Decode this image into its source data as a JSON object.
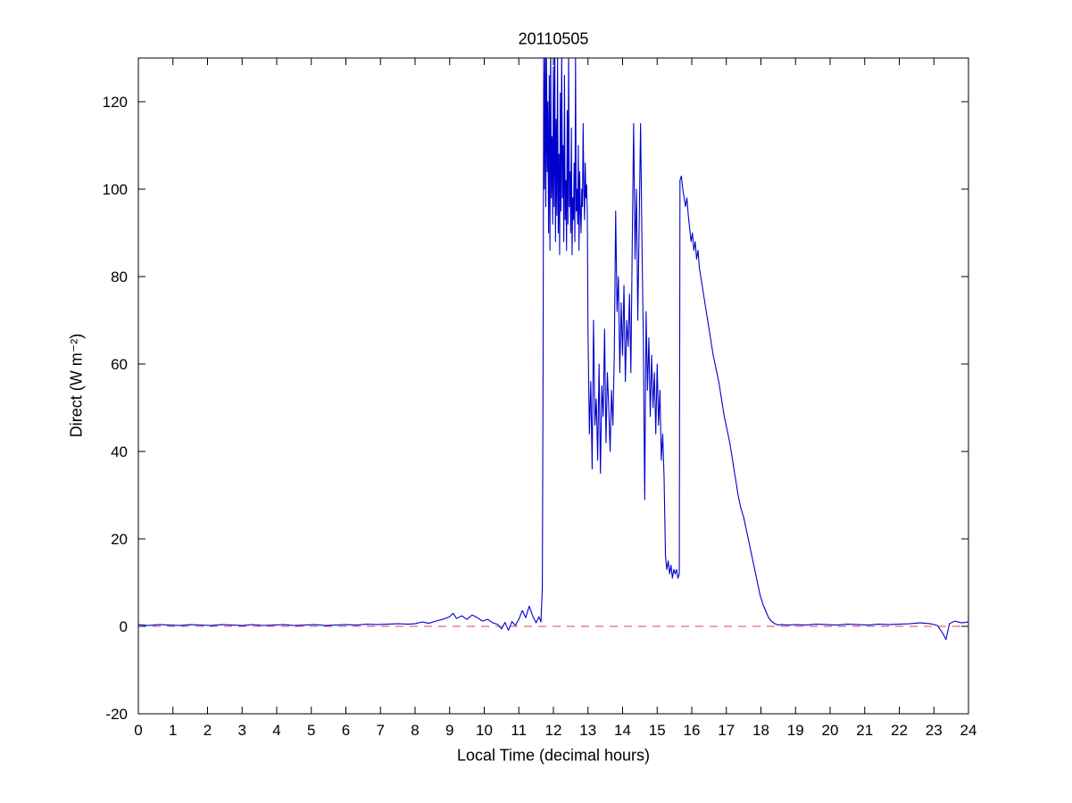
{
  "chart_data": {
    "type": "line",
    "title": "20110505",
    "xlabel": "Local Time (decimal hours)",
    "ylabel": "Direct (W m⁻²)",
    "xlim": [
      0,
      24
    ],
    "ylim": [
      -20,
      130
    ],
    "xticks": [
      0,
      1,
      2,
      3,
      4,
      5,
      6,
      7,
      8,
      9,
      10,
      11,
      12,
      13,
      14,
      15,
      16,
      17,
      18,
      19,
      20,
      21,
      22,
      23,
      24
    ],
    "yticks": [
      -20,
      0,
      20,
      40,
      60,
      80,
      100,
      120
    ],
    "grid": false,
    "legend": null,
    "series": [
      {
        "name": "direct-irradiance",
        "color": "#0000cc",
        "style": "solid",
        "points": [
          [
            0,
            0.4
          ],
          [
            0.3,
            0.2
          ],
          [
            0.6,
            0.4
          ],
          [
            0.9,
            0.3
          ],
          [
            1.2,
            0.2
          ],
          [
            1.5,
            0.4
          ],
          [
            1.8,
            0.3
          ],
          [
            2.1,
            0.2
          ],
          [
            2.4,
            0.4
          ],
          [
            2.7,
            0.3
          ],
          [
            3.0,
            0.2
          ],
          [
            3.3,
            0.4
          ],
          [
            3.6,
            0.2
          ],
          [
            3.9,
            0.3
          ],
          [
            4.2,
            0.4
          ],
          [
            4.5,
            0.2
          ],
          [
            4.8,
            0.3
          ],
          [
            5.1,
            0.4
          ],
          [
            5.4,
            0.2
          ],
          [
            5.7,
            0.3
          ],
          [
            6.0,
            0.4
          ],
          [
            6.3,
            0.3
          ],
          [
            6.6,
            0.5
          ],
          [
            6.9,
            0.4
          ],
          [
            7.2,
            0.5
          ],
          [
            7.5,
            0.6
          ],
          [
            7.8,
            0.5
          ],
          [
            8.0,
            0.6
          ],
          [
            8.2,
            1.0
          ],
          [
            8.4,
            0.7
          ],
          [
            8.6,
            1.2
          ],
          [
            8.8,
            1.6
          ],
          [
            9.0,
            2.2
          ],
          [
            9.1,
            3.0
          ],
          [
            9.2,
            1.8
          ],
          [
            9.35,
            2.4
          ],
          [
            9.5,
            1.6
          ],
          [
            9.65,
            2.6
          ],
          [
            9.8,
            2.0
          ],
          [
            9.95,
            1.2
          ],
          [
            10.1,
            1.6
          ],
          [
            10.25,
            0.8
          ],
          [
            10.4,
            0.4
          ],
          [
            10.5,
            -0.6
          ],
          [
            10.6,
            0.9
          ],
          [
            10.7,
            -0.9
          ],
          [
            10.8,
            1.1
          ],
          [
            10.9,
            0.2
          ],
          [
            11.0,
            1.6
          ],
          [
            11.1,
            3.6
          ],
          [
            11.2,
            2.0
          ],
          [
            11.3,
            4.6
          ],
          [
            11.4,
            2.4
          ],
          [
            11.5,
            0.8
          ],
          [
            11.58,
            2.2
          ],
          [
            11.64,
            1.0
          ],
          [
            11.68,
            9
          ],
          [
            11.7,
            55
          ],
          [
            11.72,
            130
          ],
          [
            11.74,
            100
          ],
          [
            11.76,
            135
          ],
          [
            11.78,
            96
          ],
          [
            11.8,
            132
          ],
          [
            11.82,
            104
          ],
          [
            11.84,
            120
          ],
          [
            11.86,
            90
          ],
          [
            11.88,
            126
          ],
          [
            11.9,
            86
          ],
          [
            11.92,
            135
          ],
          [
            11.94,
            98
          ],
          [
            11.96,
            112
          ],
          [
            11.98,
            92
          ],
          [
            12.0,
            128
          ],
          [
            12.02,
            96
          ],
          [
            12.04,
            134
          ],
          [
            12.06,
            88
          ],
          [
            12.08,
            116
          ],
          [
            12.1,
            94
          ],
          [
            12.12,
            130
          ],
          [
            12.14,
            90
          ],
          [
            12.16,
            108
          ],
          [
            12.18,
            85
          ],
          [
            12.2,
            122
          ],
          [
            12.22,
            95
          ],
          [
            12.24,
            132
          ],
          [
            12.26,
            98
          ],
          [
            12.28,
            110
          ],
          [
            12.3,
            88
          ],
          [
            12.32,
            126
          ],
          [
            12.34,
            93
          ],
          [
            12.36,
            102
          ],
          [
            12.38,
            86
          ],
          [
            12.4,
            118
          ],
          [
            12.42,
            92
          ],
          [
            12.44,
            131
          ],
          [
            12.46,
            96
          ],
          [
            12.48,
            104
          ],
          [
            12.5,
            90
          ],
          [
            12.52,
            114
          ],
          [
            12.54,
            85
          ],
          [
            12.56,
            98
          ],
          [
            12.58,
            93
          ],
          [
            12.6,
            106
          ],
          [
            12.62,
            88
          ],
          [
            12.64,
            130
          ],
          [
            12.66,
            95
          ],
          [
            12.68,
            100
          ],
          [
            12.7,
            92
          ],
          [
            12.72,
            110
          ],
          [
            12.74,
            86
          ],
          [
            12.76,
            104
          ],
          [
            12.78,
            95
          ],
          [
            12.8,
            90
          ],
          [
            12.82,
            100
          ],
          [
            12.84,
            96
          ],
          [
            12.86,
            115
          ],
          [
            12.88,
            100
          ],
          [
            12.9,
            93
          ],
          [
            12.92,
            106
          ],
          [
            12.94,
            98
          ],
          [
            12.96,
            101
          ],
          [
            12.98,
            95
          ],
          [
            13.0,
            68
          ],
          [
            13.04,
            44
          ],
          [
            13.08,
            56
          ],
          [
            13.12,
            36
          ],
          [
            13.16,
            70
          ],
          [
            13.2,
            46
          ],
          [
            13.24,
            52
          ],
          [
            13.28,
            38
          ],
          [
            13.32,
            60
          ],
          [
            13.36,
            35
          ],
          [
            13.4,
            55
          ],
          [
            13.44,
            48
          ],
          [
            13.48,
            68
          ],
          [
            13.52,
            42
          ],
          [
            13.56,
            58
          ],
          [
            13.6,
            50
          ],
          [
            13.64,
            40
          ],
          [
            13.68,
            54
          ],
          [
            13.72,
            46
          ],
          [
            13.76,
            62
          ],
          [
            13.8,
            95
          ],
          [
            13.84,
            72
          ],
          [
            13.88,
            80
          ],
          [
            13.92,
            58
          ],
          [
            13.96,
            74
          ],
          [
            14.0,
            62
          ],
          [
            14.04,
            78
          ],
          [
            14.08,
            56
          ],
          [
            14.12,
            70
          ],
          [
            14.16,
            64
          ],
          [
            14.2,
            76
          ],
          [
            14.24,
            58
          ],
          [
            14.28,
            88
          ],
          [
            14.32,
            115
          ],
          [
            14.36,
            84
          ],
          [
            14.4,
            100
          ],
          [
            14.44,
            70
          ],
          [
            14.48,
            92
          ],
          [
            14.52,
            115
          ],
          [
            14.56,
            88
          ],
          [
            14.6,
            66
          ],
          [
            14.64,
            29
          ],
          [
            14.68,
            72
          ],
          [
            14.72,
            54
          ],
          [
            14.76,
            66
          ],
          [
            14.8,
            48
          ],
          [
            14.84,
            62
          ],
          [
            14.88,
            50
          ],
          [
            14.92,
            58
          ],
          [
            14.96,
            44
          ],
          [
            15.0,
            60
          ],
          [
            15.04,
            46
          ],
          [
            15.08,
            54
          ],
          [
            15.12,
            38
          ],
          [
            15.16,
            44
          ],
          [
            15.2,
            34
          ],
          [
            15.24,
            16
          ],
          [
            15.28,
            13
          ],
          [
            15.32,
            15
          ],
          [
            15.36,
            12
          ],
          [
            15.4,
            14
          ],
          [
            15.44,
            11
          ],
          [
            15.48,
            13
          ],
          [
            15.52,
            12
          ],
          [
            15.56,
            13
          ],
          [
            15.6,
            11
          ],
          [
            15.64,
            12
          ],
          [
            15.66,
            102
          ],
          [
            15.7,
            103
          ],
          [
            15.74,
            100
          ],
          [
            15.78,
            98
          ],
          [
            15.82,
            96
          ],
          [
            15.86,
            98
          ],
          [
            15.9,
            94
          ],
          [
            15.94,
            91
          ],
          [
            15.98,
            88
          ],
          [
            16.02,
            90
          ],
          [
            16.06,
            86
          ],
          [
            16.1,
            88
          ],
          [
            16.14,
            84
          ],
          [
            16.18,
            86
          ],
          [
            16.22,
            82
          ],
          [
            16.26,
            80
          ],
          [
            16.3,
            78
          ],
          [
            16.38,
            74
          ],
          [
            16.46,
            70
          ],
          [
            16.54,
            66
          ],
          [
            16.62,
            62
          ],
          [
            16.7,
            59
          ],
          [
            16.78,
            56
          ],
          [
            16.86,
            52
          ],
          [
            16.94,
            48
          ],
          [
            17.02,
            45
          ],
          [
            17.1,
            42
          ],
          [
            17.18,
            38
          ],
          [
            17.26,
            34
          ],
          [
            17.34,
            30
          ],
          [
            17.42,
            27
          ],
          [
            17.5,
            25
          ],
          [
            17.58,
            22
          ],
          [
            17.66,
            19
          ],
          [
            17.74,
            16
          ],
          [
            17.82,
            13
          ],
          [
            17.9,
            10
          ],
          [
            17.98,
            7
          ],
          [
            18.06,
            5
          ],
          [
            18.14,
            3.5
          ],
          [
            18.22,
            2
          ],
          [
            18.3,
            1.2
          ],
          [
            18.4,
            0.6
          ],
          [
            18.5,
            0.3
          ],
          [
            18.6,
            0.4
          ],
          [
            18.8,
            0.3
          ],
          [
            19.0,
            0.4
          ],
          [
            19.3,
            0.3
          ],
          [
            19.6,
            0.5
          ],
          [
            19.9,
            0.4
          ],
          [
            20.2,
            0.3
          ],
          [
            20.5,
            0.5
          ],
          [
            20.8,
            0.4
          ],
          [
            21.1,
            0.3
          ],
          [
            21.4,
            0.5
          ],
          [
            21.7,
            0.4
          ],
          [
            22.0,
            0.5
          ],
          [
            22.3,
            0.6
          ],
          [
            22.6,
            0.8
          ],
          [
            22.9,
            0.6
          ],
          [
            23.1,
            0.2
          ],
          [
            23.25,
            -1.5
          ],
          [
            23.35,
            -3
          ],
          [
            23.45,
            0.6
          ],
          [
            23.6,
            1.2
          ],
          [
            23.8,
            0.8
          ],
          [
            24,
            1.0
          ]
        ]
      },
      {
        "name": "zero-reference-line",
        "color": "#dd4444",
        "style": "dashed",
        "points": [
          [
            0,
            0
          ],
          [
            24,
            0
          ]
        ]
      }
    ]
  }
}
